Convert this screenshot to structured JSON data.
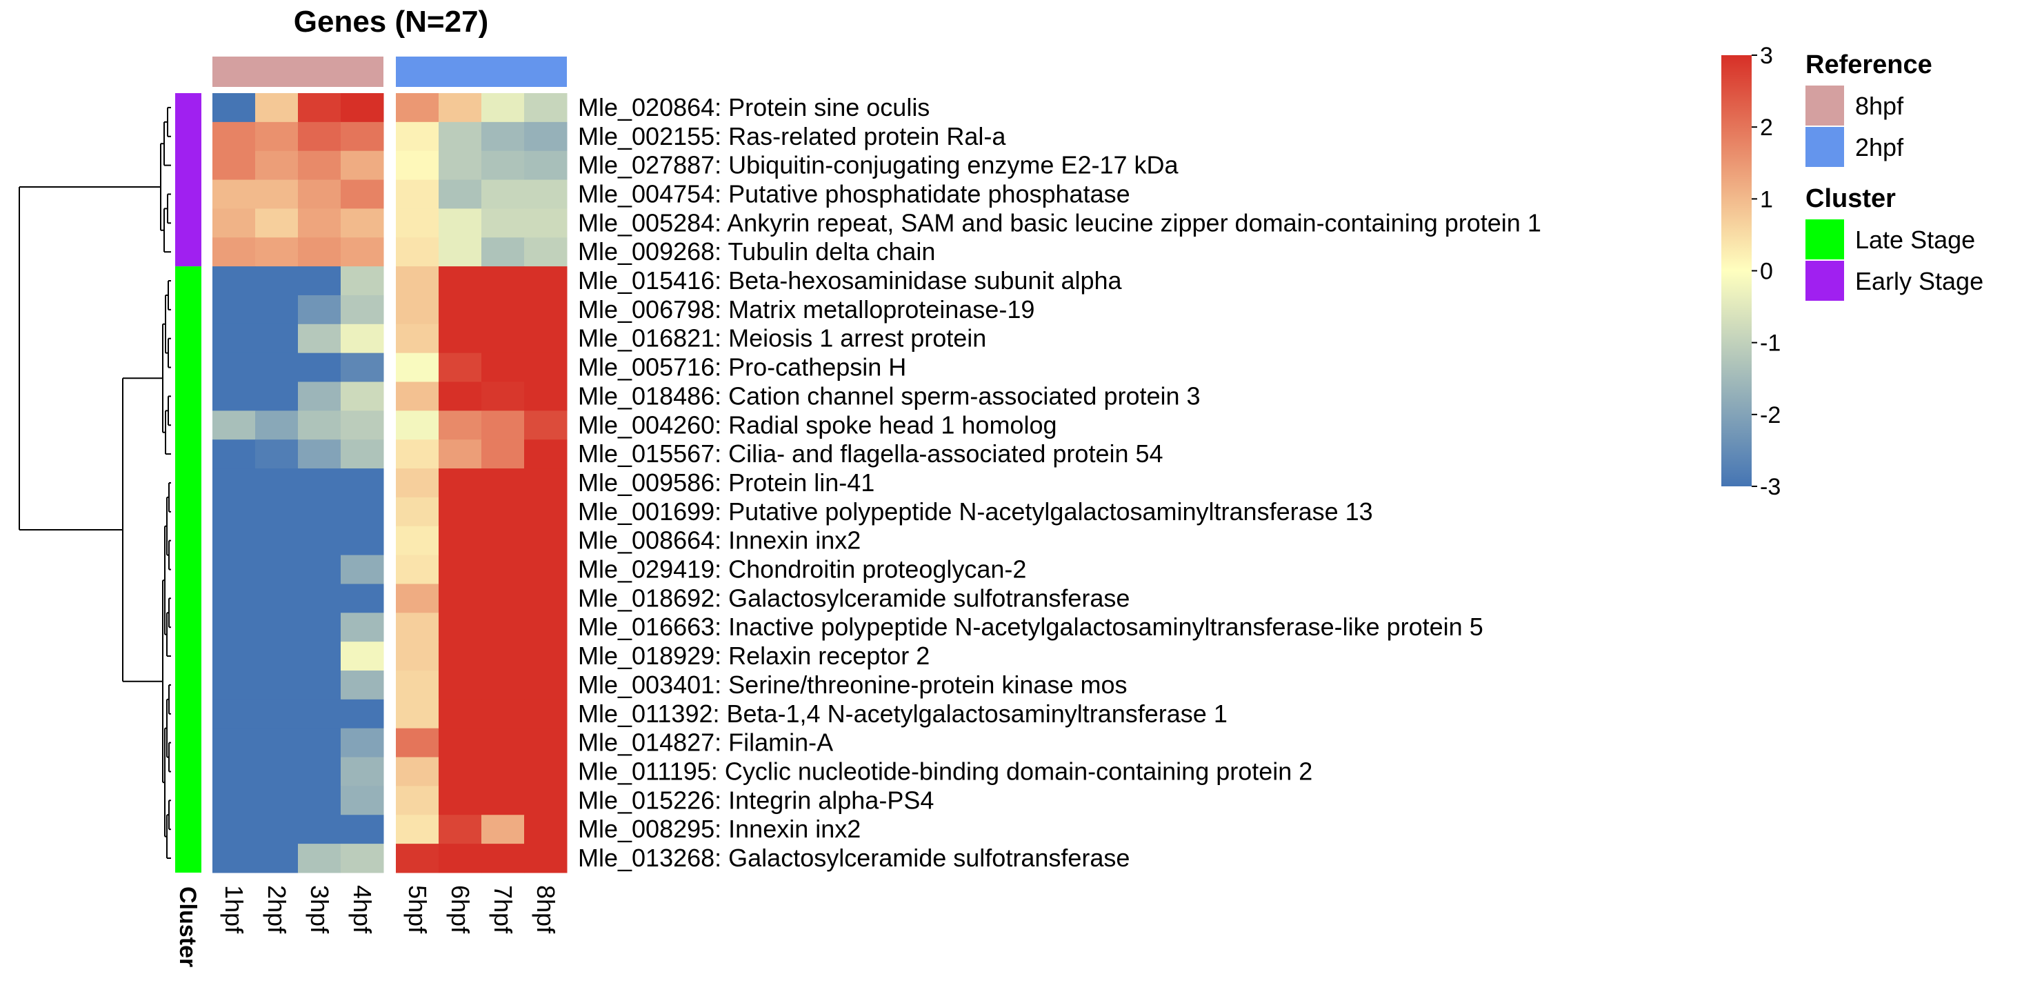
{
  "chart_data": {
    "type": "heatmap",
    "title": "Genes (N=27)",
    "columns": [
      "1hpf",
      "2hpf",
      "3hpf",
      "4hpf",
      "5hpf",
      "6hpf",
      "7hpf",
      "8hpf"
    ],
    "column_groups": [
      "8hpf",
      "8hpf",
      "8hpf",
      "8hpf",
      "2hpf",
      "2hpf",
      "2hpf",
      "2hpf"
    ],
    "rows": [
      "Mle_020864: Protein sine oculis",
      "Mle_002155: Ras-related protein Ral-a",
      "Mle_027887: Ubiquitin-conjugating enzyme E2-17 kDa",
      "Mle_004754: Putative phosphatidate phosphatase",
      "Mle_005284: Ankyrin repeat, SAM and basic leucine zipper domain-containing protein 1",
      "Mle_009268: Tubulin delta chain",
      "Mle_015416: Beta-hexosaminidase subunit alpha",
      "Mle_006798: Matrix metalloproteinase-19",
      "Mle_016821: Meiosis 1 arrest protein",
      "Mle_005716: Pro-cathepsin H",
      "Mle_018486: Cation channel sperm-associated protein 3",
      "Mle_004260: Radial spoke head 1 homolog",
      "Mle_015567: Cilia- and flagella-associated protein 54",
      "Mle_009586: Protein lin-41",
      "Mle_001699: Putative polypeptide N-acetylgalactosaminyltransferase 13",
      "Mle_008664: Innexin inx2",
      "Mle_029419: Chondroitin proteoglycan-2",
      "Mle_018692: Galactosylceramide sulfotransferase",
      "Mle_016663: Inactive polypeptide N-acetylgalactosaminyltransferase-like protein 5",
      "Mle_018929: Relaxin receptor 2",
      "Mle_003401: Serine/threonine-protein kinase mos",
      "Mle_011392: Beta-1,4 N-acetylgalactosaminyltransferase 1",
      "Mle_014827: Filamin-A",
      "Mle_011195: Cyclic nucleotide-binding domain-containing protein 2",
      "Mle_015226: Integrin alpha-PS4",
      "Mle_008295: Innexin inx2",
      "Mle_013268: Galactosylceramide sulfotransferase"
    ],
    "row_clusters": [
      "Early Stage",
      "Early Stage",
      "Early Stage",
      "Early Stage",
      "Early Stage",
      "Early Stage",
      "Late Stage",
      "Late Stage",
      "Late Stage",
      "Late Stage",
      "Late Stage",
      "Late Stage",
      "Late Stage",
      "Late Stage",
      "Late Stage",
      "Late Stage",
      "Late Stage",
      "Late Stage",
      "Late Stage",
      "Late Stage",
      "Late Stage",
      "Late Stage",
      "Late Stage",
      "Late Stage",
      "Late Stage",
      "Late Stage",
      "Late Stage"
    ],
    "values": [
      [
        -3,
        0.8,
        2.8,
        3,
        1.5,
        0.8,
        -0.4,
        -0.9
      ],
      [
        1.8,
        1.6,
        2.2,
        2.0,
        0.2,
        -1.1,
        -1.5,
        -1.7
      ],
      [
        1.8,
        1.4,
        1.7,
        1.2,
        0.1,
        -1.1,
        -1.3,
        -1.4
      ],
      [
        1.0,
        1.0,
        1.4,
        1.8,
        0.3,
        -1.3,
        -0.9,
        -0.9
      ],
      [
        1.1,
        0.7,
        1.3,
        1.0,
        0.3,
        -0.4,
        -0.8,
        -0.8
      ],
      [
        1.4,
        1.3,
        1.5,
        1.3,
        0.4,
        -0.4,
        -1.3,
        -1.0
      ],
      [
        -3,
        -3,
        -3,
        -1.0,
        0.8,
        3,
        3,
        3
      ],
      [
        -3,
        -3,
        -2.3,
        -1.2,
        0.8,
        3,
        3,
        3
      ],
      [
        -3,
        -3,
        -1.2,
        -0.3,
        0.7,
        3,
        3,
        3
      ],
      [
        -3,
        -3,
        -3,
        -2.6,
        -0.1,
        2.7,
        3,
        3
      ],
      [
        -3,
        -3,
        -1.6,
        -0.8,
        0.9,
        3,
        2.9,
        3
      ],
      [
        -1.4,
        -1.9,
        -1.3,
        -1.1,
        -0.2,
        1.7,
        1.9,
        2.6
      ],
      [
        -3,
        -2.8,
        -2.0,
        -1.3,
        0.4,
        1.4,
        1.9,
        3
      ],
      [
        -3,
        -3,
        -3,
        -3,
        0.7,
        3,
        3,
        3
      ],
      [
        -3,
        -3,
        -3,
        -3,
        0.5,
        3,
        3,
        3
      ],
      [
        -3,
        -3,
        -3,
        -3,
        0.3,
        3,
        3,
        3
      ],
      [
        -3,
        -3,
        -3,
        -1.8,
        0.4,
        3,
        3,
        3
      ],
      [
        -3,
        -3,
        -3,
        -3,
        1.2,
        3,
        3,
        3
      ],
      [
        -3,
        -3,
        -3,
        -1.5,
        0.7,
        3,
        3,
        3
      ],
      [
        -3,
        -3,
        -3,
        -0.2,
        0.7,
        3,
        3,
        3
      ],
      [
        -3,
        -3,
        -3,
        -1.6,
        0.6,
        3,
        3,
        3
      ],
      [
        -3,
        -3,
        -3,
        -3,
        0.6,
        3,
        3,
        3
      ],
      [
        -3,
        -3,
        -3,
        -2.0,
        2.0,
        3,
        3,
        3
      ],
      [
        -3,
        -3,
        -3,
        -1.6,
        0.8,
        3,
        3,
        3
      ],
      [
        -3,
        -3,
        -3,
        -1.7,
        0.6,
        3,
        3,
        3
      ],
      [
        -3,
        -3,
        -3,
        -3,
        0.4,
        2.7,
        1.2,
        3
      ],
      [
        -3,
        -3,
        -1.3,
        -1.1,
        2.9,
        3,
        3,
        3
      ]
    ],
    "color_scale": {
      "min": -3,
      "max": 3,
      "low": "#4575b4",
      "mid": "#ffffbf",
      "high": "#d73027"
    },
    "colorbar_ticks": [
      3,
      2,
      1,
      0,
      -1,
      -2,
      -3
    ],
    "legends": [
      {
        "title": "Reference",
        "items": [
          {
            "label": "8hpf",
            "color": "#d4a0a0"
          },
          {
            "label": "2hpf",
            "color": "#6495ed"
          }
        ]
      },
      {
        "title": "Cluster",
        "items": [
          {
            "label": "Late Stage",
            "color": "#00ff00"
          },
          {
            "label": "Early Stage",
            "color": "#a020f0"
          }
        ]
      }
    ],
    "row_annotation_label": "Cluster",
    "dendrogram": "row"
  }
}
